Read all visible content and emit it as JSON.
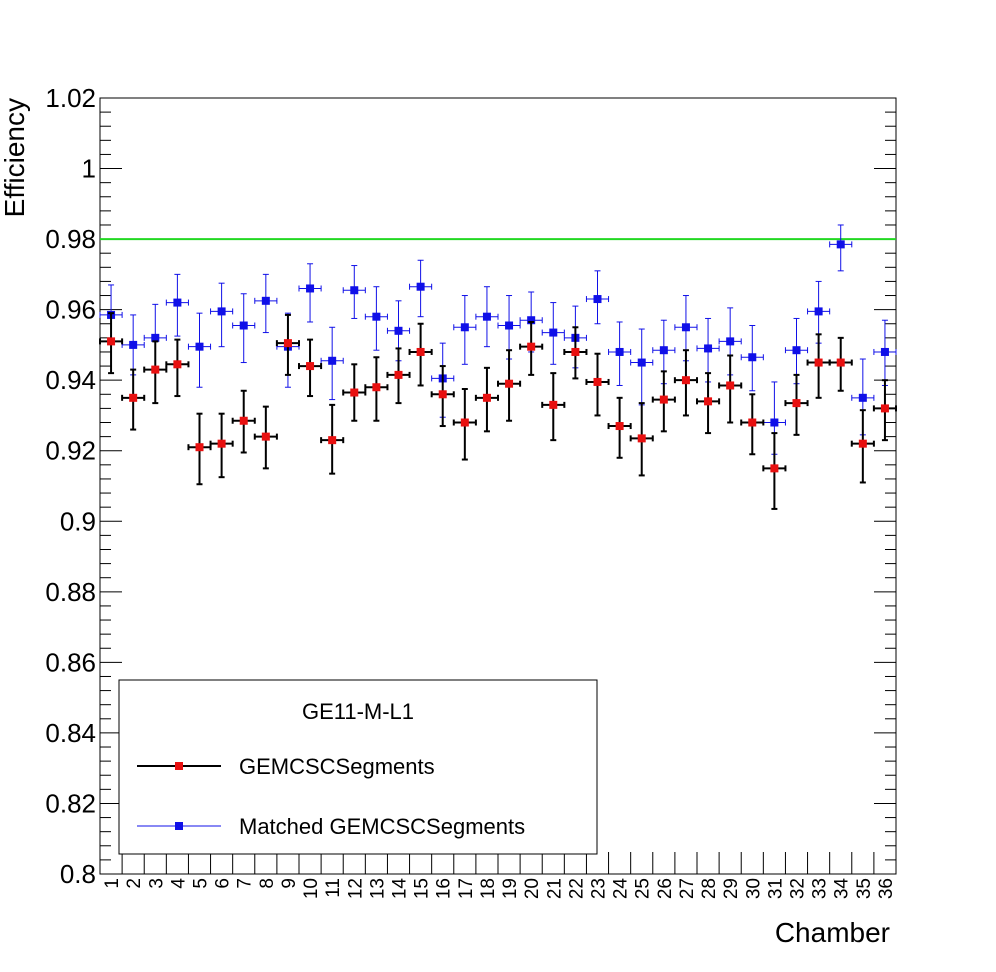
{
  "chart_data": {
    "type": "scatter",
    "xlabel": "Chamber",
    "ylabel": "Efficiency",
    "categories": [
      "1",
      "2",
      "3",
      "4",
      "5",
      "6",
      "7",
      "8",
      "9",
      "10",
      "11",
      "12",
      "13",
      "14",
      "15",
      "16",
      "17",
      "18",
      "19",
      "20",
      "21",
      "22",
      "23",
      "24",
      "25",
      "26",
      "27",
      "28",
      "29",
      "30",
      "31",
      "32",
      "33",
      "34",
      "35",
      "36"
    ],
    "ylim": [
      0.8,
      1.02
    ],
    "yticks": [
      {
        "value": 0.8,
        "label": "0.8"
      },
      {
        "value": 0.82,
        "label": "0.82"
      },
      {
        "value": 0.84,
        "label": "0.84"
      },
      {
        "value": 0.86,
        "label": "0.86"
      },
      {
        "value": 0.88,
        "label": "0.88"
      },
      {
        "value": 0.9,
        "label": "0.9"
      },
      {
        "value": 0.92,
        "label": "0.92"
      },
      {
        "value": 0.94,
        "label": "0.94"
      },
      {
        "value": 0.96,
        "label": "0.96"
      },
      {
        "value": 0.98,
        "label": "0.98"
      },
      {
        "value": 1.0,
        "label": "1"
      },
      {
        "value": 1.02,
        "label": "1.02"
      }
    ],
    "reference_line": {
      "value": 0.98,
      "color": "#22d822"
    },
    "legend": {
      "title": "GE11-M-L1",
      "placement": "bottom-left"
    },
    "series": [
      {
        "name": "GEMCSCSegments",
        "marker_color": "#e81010",
        "line_color": "#000000",
        "values": [
          0.951,
          0.935,
          0.943,
          0.9445,
          0.921,
          0.922,
          0.9285,
          0.924,
          0.9505,
          0.944,
          0.923,
          0.9365,
          0.938,
          0.9415,
          0.948,
          0.936,
          0.928,
          0.935,
          0.939,
          0.9495,
          0.933,
          0.948,
          0.9395,
          0.927,
          0.9235,
          0.9345,
          0.94,
          0.934,
          0.9385,
          0.928,
          0.915,
          0.9335,
          0.945,
          0.945,
          0.922,
          0.932
        ],
        "err_low": [
          0.009,
          0.009,
          0.0095,
          0.009,
          0.0105,
          0.0095,
          0.009,
          0.009,
          0.009,
          0.0085,
          0.0095,
          0.008,
          0.0095,
          0.008,
          0.0095,
          0.009,
          0.0105,
          0.0095,
          0.0105,
          0.008,
          0.01,
          0.0075,
          0.0095,
          0.009,
          0.0105,
          0.009,
          0.01,
          0.009,
          0.0105,
          0.009,
          0.0115,
          0.009,
          0.01,
          0.008,
          0.011,
          0.009
        ],
        "err_high": [
          0.008,
          0.008,
          0.008,
          0.007,
          0.0095,
          0.0085,
          0.0085,
          0.0085,
          0.008,
          0.0075,
          0.01,
          0.008,
          0.0085,
          0.0075,
          0.008,
          0.008,
          0.0095,
          0.0085,
          0.0095,
          0.007,
          0.009,
          0.007,
          0.008,
          0.008,
          0.01,
          0.008,
          0.0085,
          0.008,
          0.0085,
          0.008,
          0.01,
          0.008,
          0.008,
          0.007,
          0.0095,
          0.008
        ]
      },
      {
        "name": "Matched GEMCSCSegments",
        "marker_color": "#1010e8",
        "line_color": "#1010e8",
        "values": [
          0.9585,
          0.95,
          0.952,
          0.962,
          0.9495,
          0.9595,
          0.9555,
          0.9625,
          0.9495,
          0.966,
          0.9455,
          0.9655,
          0.958,
          0.954,
          0.9665,
          0.9405,
          0.955,
          0.958,
          0.9555,
          0.957,
          0.9535,
          0.952,
          0.963,
          0.948,
          0.945,
          0.9485,
          0.955,
          0.949,
          0.951,
          0.9465,
          0.928,
          0.9485,
          0.9595,
          0.9785,
          0.935,
          0.948
        ],
        "err_low": [
          0.008,
          0.0085,
          0.009,
          0.0095,
          0.0115,
          0.01,
          0.0105,
          0.009,
          0.0115,
          0.0095,
          0.011,
          0.008,
          0.0095,
          0.0085,
          0.0085,
          0.011,
          0.0105,
          0.0085,
          0.0095,
          0.009,
          0.009,
          0.0085,
          0.007,
          0.0095,
          0.012,
          0.0095,
          0.0095,
          0.0095,
          0.0095,
          0.0095,
          0.009,
          0.0095,
          0.009,
          0.0075,
          0.0105,
          0.0095
        ],
        "err_high": [
          0.0085,
          0.0085,
          0.0095,
          0.008,
          0.0095,
          0.008,
          0.009,
          0.0075,
          0.0095,
          0.007,
          0.0095,
          0.007,
          0.0085,
          0.0085,
          0.0075,
          0.01,
          0.009,
          0.0085,
          0.0085,
          0.008,
          0.0085,
          0.009,
          0.008,
          0.0085,
          0.0095,
          0.0085,
          0.009,
          0.0085,
          0.0095,
          0.009,
          0.0115,
          0.009,
          0.0085,
          0.0055,
          0.011,
          0.009
        ]
      }
    ]
  }
}
